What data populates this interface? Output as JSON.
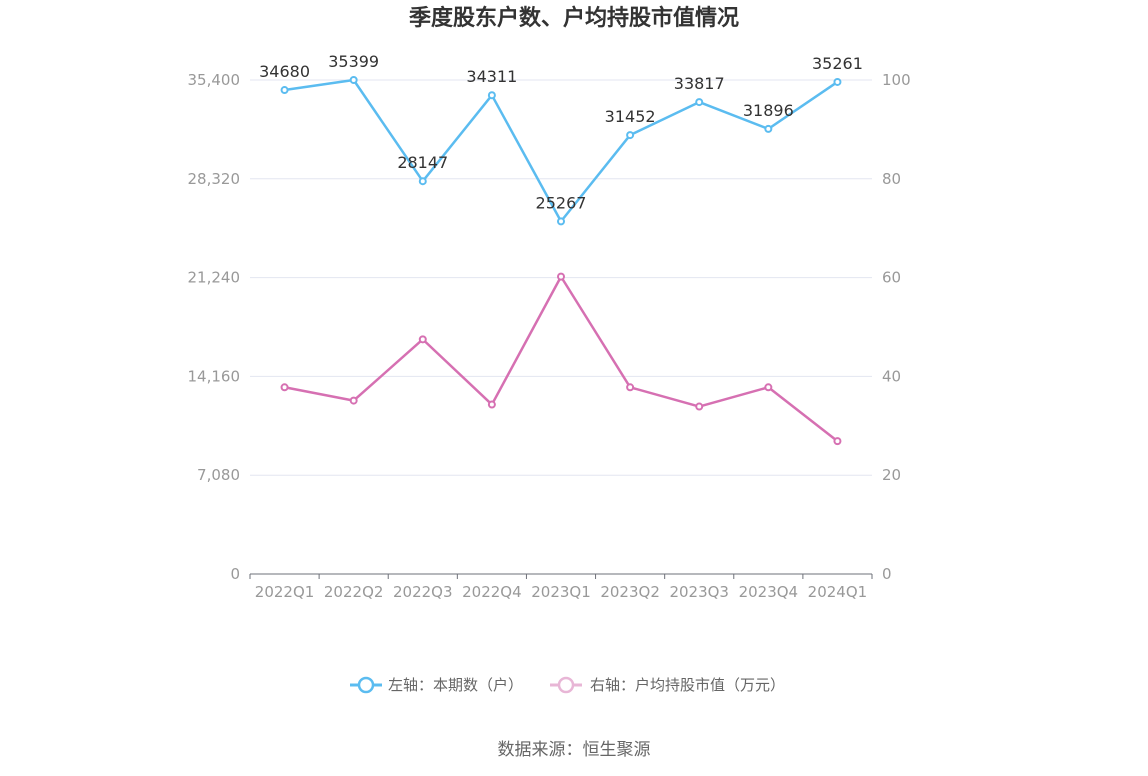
{
  "chart_data": {
    "type": "line",
    "title": "季度股东户数、户均持股市值情况",
    "categories": [
      "2022Q1",
      "2022Q2",
      "2022Q3",
      "2022Q4",
      "2023Q1",
      "2023Q2",
      "2023Q3",
      "2023Q4",
      "2024Q1"
    ],
    "left_axis": {
      "ticks": [
        "0",
        "7,080",
        "14,160",
        "21,240",
        "28,320",
        "35,400"
      ],
      "ylim": [
        0,
        35400
      ]
    },
    "right_axis": {
      "ticks": [
        "0",
        "20",
        "40",
        "60",
        "80",
        "100"
      ],
      "ylim": [
        0,
        100
      ]
    },
    "series": [
      {
        "name": "左轴：本期数（户）",
        "axis": "left",
        "color": "#5bbcf0",
        "values": [
          34680,
          35399,
          28147,
          34311,
          25267,
          31452,
          33817,
          31896,
          35261
        ],
        "labels": [
          "34680",
          "35399",
          "28147",
          "34311",
          "25267",
          "31452",
          "33817",
          "31896",
          "35261"
        ]
      },
      {
        "name": "右轴：户均持股市值（万元）",
        "axis": "right",
        "color": "#d670b2",
        "values": [
          37.8,
          35.1,
          47.5,
          34.3,
          60.2,
          37.8,
          33.9,
          37.8,
          26.9
        ]
      }
    ],
    "grid": true,
    "legend_position": "bottom"
  },
  "footer": {
    "source": "数据来源：恒生聚源"
  }
}
